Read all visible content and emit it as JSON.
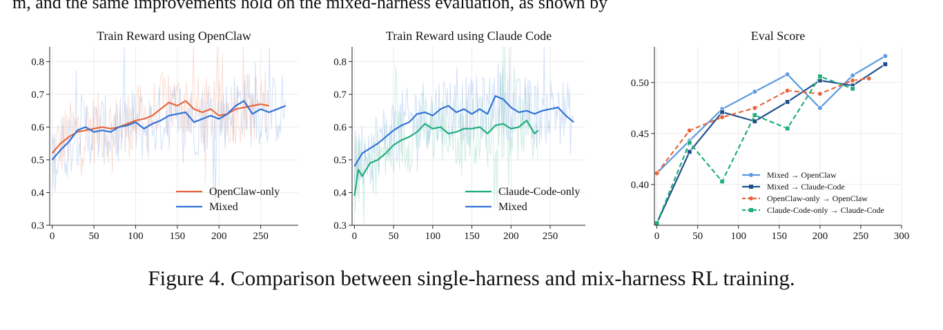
{
  "page": {
    "top_text": "m, and the same improvements hold on the mixed-harness evaluation, as shown by",
    "caption": "Figure 4. Comparison between single-harness and mix-harness RL training."
  },
  "colors": {
    "openclaw": "#e8663d",
    "mixed": "#2f72d6",
    "claude": "#1fae7c",
    "mixed_openclaw": "#5b9ae0",
    "mixed_claude": "#1f4e8c",
    "openclaw_openclaw": "#e8663d",
    "claude_claude": "#1fae7c"
  },
  "chart_data": [
    {
      "type": "line",
      "title": "Train Reward using OpenClaw",
      "xlabel": "",
      "ylabel": "",
      "xlim": [
        -3,
        295
      ],
      "ylim": [
        0.3,
        0.845
      ],
      "xticks": [
        0,
        50,
        100,
        150,
        200,
        250
      ],
      "yticks": [
        0.3,
        0.4,
        0.5,
        0.6,
        0.7,
        0.8
      ],
      "grid": true,
      "legend": "bottom-right",
      "series": [
        {
          "name": "OpenClaw-only",
          "color_key": "openclaw",
          "x": [
            0,
            10,
            20,
            30,
            40,
            50,
            60,
            70,
            80,
            90,
            100,
            110,
            120,
            130,
            140,
            150,
            160,
            170,
            180,
            190,
            200,
            210,
            220,
            230,
            240,
            250,
            260
          ],
          "y": [
            0.52,
            0.55,
            0.57,
            0.585,
            0.59,
            0.595,
            0.6,
            0.595,
            0.6,
            0.61,
            0.62,
            0.625,
            0.635,
            0.655,
            0.675,
            0.665,
            0.68,
            0.655,
            0.645,
            0.655,
            0.635,
            0.64,
            0.655,
            0.66,
            0.665,
            0.67,
            0.665
          ]
        },
        {
          "name": "Mixed",
          "color_key": "mixed",
          "x": [
            0,
            10,
            20,
            30,
            40,
            50,
            60,
            70,
            80,
            90,
            100,
            110,
            120,
            130,
            140,
            150,
            160,
            170,
            180,
            190,
            200,
            210,
            220,
            230,
            240,
            250,
            260,
            270,
            280
          ],
          "y": [
            0.5,
            0.53,
            0.555,
            0.59,
            0.6,
            0.585,
            0.59,
            0.585,
            0.6,
            0.605,
            0.615,
            0.595,
            0.61,
            0.62,
            0.635,
            0.64,
            0.645,
            0.615,
            0.625,
            0.635,
            0.625,
            0.64,
            0.665,
            0.68,
            0.64,
            0.655,
            0.645,
            0.655,
            0.665
          ]
        }
      ]
    },
    {
      "type": "line",
      "title": "Train Reward using Claude Code",
      "xlabel": "",
      "ylabel": "",
      "xlim": [
        -3,
        295
      ],
      "ylim": [
        0.3,
        0.845
      ],
      "xticks": [
        0,
        50,
        100,
        150,
        200,
        250
      ],
      "yticks": [
        0.3,
        0.4,
        0.5,
        0.6,
        0.7,
        0.8
      ],
      "grid": true,
      "legend": "bottom-right",
      "series": [
        {
          "name": "Claude-Code-only",
          "color_key": "claude",
          "x": [
            0,
            5,
            10,
            20,
            30,
            40,
            50,
            60,
            70,
            80,
            90,
            100,
            110,
            120,
            130,
            140,
            150,
            160,
            170,
            180,
            190,
            200,
            210,
            220,
            230,
            235
          ],
          "y": [
            0.39,
            0.47,
            0.45,
            0.49,
            0.5,
            0.52,
            0.545,
            0.56,
            0.57,
            0.585,
            0.61,
            0.595,
            0.6,
            0.58,
            0.585,
            0.595,
            0.595,
            0.6,
            0.58,
            0.605,
            0.61,
            0.595,
            0.6,
            0.62,
            0.58,
            0.59
          ]
        },
        {
          "name": "Mixed",
          "color_key": "mixed",
          "x": [
            0,
            10,
            20,
            30,
            40,
            50,
            60,
            70,
            80,
            90,
            100,
            110,
            120,
            130,
            140,
            150,
            160,
            170,
            180,
            190,
            200,
            210,
            220,
            230,
            240,
            250,
            260,
            270,
            280
          ],
          "y": [
            0.48,
            0.52,
            0.535,
            0.55,
            0.57,
            0.59,
            0.605,
            0.615,
            0.64,
            0.645,
            0.635,
            0.655,
            0.665,
            0.645,
            0.655,
            0.64,
            0.655,
            0.64,
            0.695,
            0.685,
            0.66,
            0.645,
            0.65,
            0.64,
            0.65,
            0.655,
            0.66,
            0.635,
            0.615
          ]
        }
      ]
    },
    {
      "type": "line",
      "title": "Eval Score",
      "xlabel": "",
      "ylabel": "",
      "xlim": [
        -3,
        300
      ],
      "ylim": [
        0.36,
        0.535
      ],
      "xticks": [
        0,
        50,
        100,
        150,
        200,
        250,
        300
      ],
      "yticks": [
        0.4,
        0.45,
        0.5
      ],
      "ytick_labels": [
        "0.40",
        "0.45",
        "0.50"
      ],
      "grid": true,
      "legend": "bottom-right",
      "series": [
        {
          "name": "Mixed → OpenClaw",
          "color_key": "mixed_openclaw",
          "dash": false,
          "marker": "circle",
          "x": [
            0,
            40,
            80,
            120,
            160,
            200,
            240,
            280
          ],
          "y": [
            0.411,
            0.443,
            0.474,
            0.491,
            0.508,
            0.475,
            0.507,
            0.526
          ]
        },
        {
          "name": "Mixed → Claude-Code",
          "color_key": "mixed_claude",
          "dash": false,
          "marker": "square",
          "x": [
            0,
            40,
            80,
            120,
            160,
            200,
            240,
            280
          ],
          "y": [
            0.362,
            0.432,
            0.471,
            0.462,
            0.481,
            0.502,
            0.497,
            0.518
          ]
        },
        {
          "name": "OpenClaw-only → OpenClaw",
          "color_key": "openclaw_openclaw",
          "dash": true,
          "marker": "circle",
          "x": [
            0,
            40,
            80,
            120,
            160,
            200,
            240,
            260
          ],
          "y": [
            0.411,
            0.453,
            0.466,
            0.475,
            0.492,
            0.489,
            0.502,
            0.504
          ]
        },
        {
          "name": "Claude-Code-only → Claude-Code",
          "color_key": "claude_claude",
          "dash": true,
          "marker": "square",
          "x": [
            0,
            40,
            80,
            120,
            160,
            200,
            240
          ],
          "y": [
            0.362,
            0.441,
            0.403,
            0.468,
            0.455,
            0.506,
            0.494
          ]
        }
      ]
    }
  ]
}
